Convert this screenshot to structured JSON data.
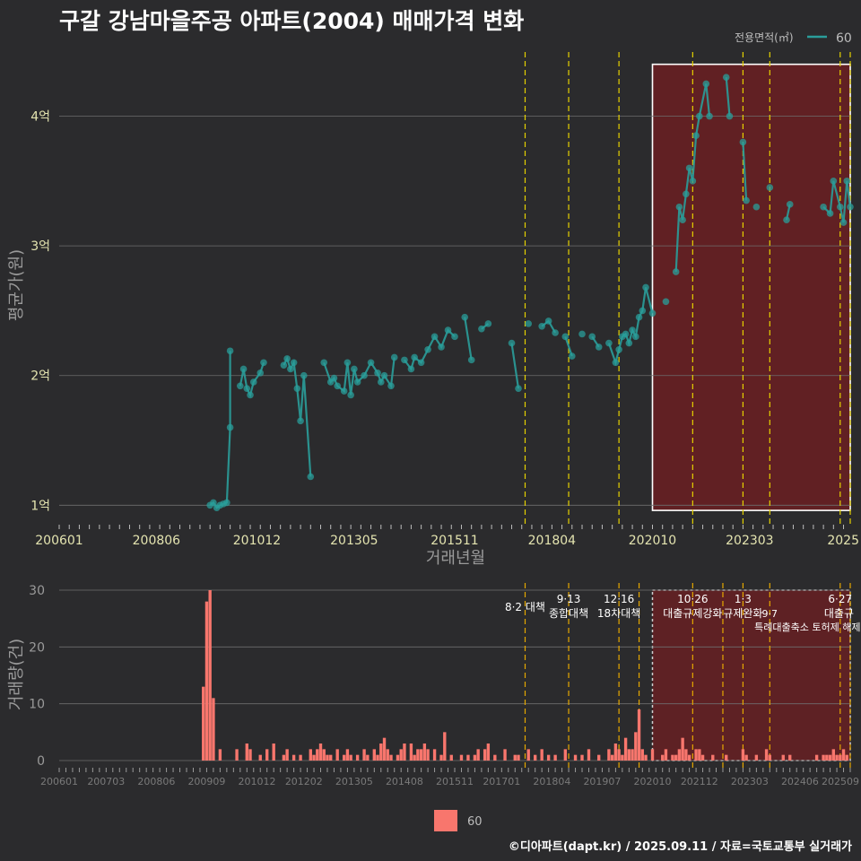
{
  "title": "구갈 강남마을주공 아파트(2004) 매매가격 변화",
  "credit": "©디아파트(dapt.kr) / 2025.09.11 / 자료=국토교통부 실거래가",
  "colors": {
    "background": "#2b2b2d",
    "price_line": "#2a9d9a",
    "volume_bar": "#f8766d",
    "highlight_fill": "#6b1f22",
    "policy_line": "#e6d200",
    "grid": "#6e6e6e"
  },
  "chart_data": [
    {
      "type": "line",
      "title": "구갈 강남마을주공 아파트(2004) 매매가격 변화",
      "xlabel": "거래년월",
      "ylabel": "평균가(원)",
      "x_range": [
        "2006-01",
        "2025-09"
      ],
      "ylim": [
        0.85,
        4.55
      ],
      "y_ticks": [
        1,
        2,
        3,
        4
      ],
      "y_tick_labels": [
        "1억",
        "2억",
        "3억",
        "4억"
      ],
      "x_ticks": [
        "2006-01",
        "2008-06",
        "2010-12",
        "2013-05",
        "2015-11",
        "2018-04",
        "2020-10",
        "2023-03",
        "2025-09"
      ],
      "x_tick_labels": [
        "200601",
        "200806",
        "201012",
        "201305",
        "201511",
        "201804",
        "202010",
        "202303",
        "2025"
      ],
      "legend": {
        "title": "전용면적(㎡)",
        "entries": [
          "60"
        ],
        "position": "top-right"
      },
      "highlight_box": {
        "x_start": "2020-10",
        "x_end": "2025-09",
        "y_start": 0.96,
        "y_end": 4.4
      },
      "policy_lines": [
        "2017-08",
        "2018-09",
        "2019-12",
        "2021-10",
        "2023-01",
        "2023-09",
        "2025-06",
        "2025-09"
      ],
      "series": [
        {
          "name": "60",
          "points": [
            [
              "2009-10",
              1.0
            ],
            [
              "2009-11",
              1.02
            ],
            [
              "2009-12",
              0.98
            ],
            [
              "2010-01",
              1.0
            ],
            [
              "2010-02",
              1.01
            ],
            [
              "2010-03",
              1.02
            ],
            [
              "2010-04",
              1.6
            ],
            [
              "2010-04",
              2.19
            ],
            [
              "2010-07",
              1.92
            ],
            [
              "2010-08",
              2.05
            ],
            [
              "2010-09",
              1.9
            ],
            [
              "2010-10",
              1.85
            ],
            [
              "2010-11",
              1.95
            ],
            [
              "2011-01",
              2.02
            ],
            [
              "2011-02",
              2.1
            ],
            [
              "2011-08",
              2.08
            ],
            [
              "2011-09",
              2.13
            ],
            [
              "2011-10",
              2.05
            ],
            [
              "2011-11",
              2.1
            ],
            [
              "2011-12",
              1.9
            ],
            [
              "2012-01",
              1.65
            ],
            [
              "2012-02",
              2.0
            ],
            [
              "2012-04",
              1.22
            ],
            [
              "2012-08",
              2.1
            ],
            [
              "2012-10",
              1.95
            ],
            [
              "2012-11",
              1.98
            ],
            [
              "2012-12",
              1.92
            ],
            [
              "2013-02",
              1.88
            ],
            [
              "2013-03",
              2.1
            ],
            [
              "2013-04",
              1.85
            ],
            [
              "2013-05",
              2.05
            ],
            [
              "2013-06",
              1.95
            ],
            [
              "2013-08",
              2.0
            ],
            [
              "2013-10",
              2.1
            ],
            [
              "2013-12",
              2.02
            ],
            [
              "2014-01",
              1.95
            ],
            [
              "2014-02",
              2.0
            ],
            [
              "2014-04",
              1.92
            ],
            [
              "2014-05",
              2.14
            ],
            [
              "2014-08",
              2.12
            ],
            [
              "2014-10",
              2.05
            ],
            [
              "2014-11",
              2.14
            ],
            [
              "2015-01",
              2.1
            ],
            [
              "2015-03",
              2.2
            ],
            [
              "2015-05",
              2.3
            ],
            [
              "2015-07",
              2.22
            ],
            [
              "2015-09",
              2.35
            ],
            [
              "2015-11",
              2.3
            ],
            [
              "2016-02",
              2.45
            ],
            [
              "2016-04",
              2.12
            ],
            [
              "2016-07",
              2.36
            ],
            [
              "2016-09",
              2.4
            ],
            [
              "2017-04",
              2.25
            ],
            [
              "2017-06",
              1.9
            ],
            [
              "2017-09",
              2.4
            ],
            [
              "2018-01",
              2.38
            ],
            [
              "2018-03",
              2.42
            ],
            [
              "2018-05",
              2.33
            ],
            [
              "2018-08",
              2.3
            ],
            [
              "2018-10",
              2.15
            ],
            [
              "2019-01",
              2.32
            ],
            [
              "2019-04",
              2.3
            ],
            [
              "2019-06",
              2.22
            ],
            [
              "2019-09",
              2.25
            ],
            [
              "2019-11",
              2.1
            ],
            [
              "2019-12",
              2.2
            ],
            [
              "2020-01",
              2.3
            ],
            [
              "2020-02",
              2.32
            ],
            [
              "2020-03",
              2.25
            ],
            [
              "2020-04",
              2.35
            ],
            [
              "2020-05",
              2.3
            ],
            [
              "2020-06",
              2.45
            ],
            [
              "2020-07",
              2.5
            ],
            [
              "2020-08",
              2.68
            ],
            [
              "2020-10",
              2.48
            ],
            [
              "2021-02",
              2.57
            ],
            [
              "2021-05",
              2.8
            ],
            [
              "2021-06",
              3.3
            ],
            [
              "2021-07",
              3.2
            ],
            [
              "2021-08",
              3.4
            ],
            [
              "2021-09",
              3.6
            ],
            [
              "2021-10",
              3.5
            ],
            [
              "2021-11",
              3.85
            ],
            [
              "2021-12",
              4.0
            ],
            [
              "2022-02",
              4.25
            ],
            [
              "2022-03",
              4.0
            ],
            [
              "2022-08",
              4.3
            ],
            [
              "2022-09",
              4.0
            ],
            [
              "2023-01",
              3.8
            ],
            [
              "2023-02",
              3.35
            ],
            [
              "2023-05",
              3.3
            ],
            [
              "2023-09",
              3.45
            ],
            [
              "2024-02",
              3.2
            ],
            [
              "2024-03",
              3.32
            ],
            [
              "2025-01",
              3.3
            ],
            [
              "2025-03",
              3.25
            ],
            [
              "2025-04",
              3.5
            ],
            [
              "2025-06",
              3.3
            ],
            [
              "2025-07",
              3.18
            ],
            [
              "2025-08",
              3.5
            ],
            [
              "2025-09",
              3.3
            ]
          ]
        }
      ]
    },
    {
      "type": "bar",
      "title": "",
      "xlabel": "",
      "ylabel": "거래량(건)",
      "x_range": [
        "2006-01",
        "2025-09"
      ],
      "ylim": [
        0,
        30
      ],
      "y_ticks": [
        0,
        10,
        20,
        30
      ],
      "y_tick_labels": [
        "0",
        "10",
        "20",
        "30"
      ],
      "x_ticks": [
        "2006-01",
        "2007-03",
        "2008-06",
        "2009-09",
        "2010-12",
        "2012-02",
        "2013-05",
        "2014-08",
        "2015-11",
        "2017-01",
        "2018-04",
        "2019-07",
        "2020-10",
        "2021-12",
        "2023-03",
        "2024-06",
        "2025-09"
      ],
      "x_tick_labels": [
        "200601",
        "200703",
        "200806",
        "200909",
        "201012",
        "201202",
        "201305",
        "201408",
        "201511",
        "201701",
        "201804",
        "201907",
        "202010",
        "202112",
        "202303",
        "202406",
        "202509"
      ],
      "legend": {
        "entries": [
          "60"
        ],
        "position": "bottom-center"
      },
      "highlight_box": {
        "x_start": "2020-10",
        "x_end": "2025-09",
        "y_start": 0,
        "y_end": 30
      },
      "policy_lines": [
        "2017-08",
        "2018-09",
        "2019-12",
        "2020-06",
        "2021-10",
        "2022-07",
        "2023-01",
        "2023-09",
        "2025-06",
        "2025-09"
      ],
      "annotations": [
        {
          "date": "2017-08",
          "line1": "8·2 대책",
          "line2": ""
        },
        {
          "date": "2018-09",
          "line1": "9·13",
          "line2": "종합대책"
        },
        {
          "date": "2019-12",
          "line1": "12·16",
          "line2": "18차대책"
        },
        {
          "date": "2021-10",
          "line1": "10·26",
          "line2": "대출규제강화"
        },
        {
          "date": "2023-01",
          "line1": "1·3",
          "line2": "규제완화"
        },
        {
          "date": "2023-09",
          "line1": "",
          "line2": "9·7"
        },
        {
          "date": "2023-09",
          "line1": "",
          "line2": "특례대출축소 토허제 해제"
        },
        {
          "date": "2025-06",
          "line1": "6·27",
          "line2": "대출규"
        }
      ],
      "series": [
        {
          "name": "60",
          "values": [
            [
              "2009-08",
              13
            ],
            [
              "2009-09",
              28
            ],
            [
              "2009-10",
              30
            ],
            [
              "2009-11",
              11
            ],
            [
              "2010-01",
              2
            ],
            [
              "2010-06",
              2
            ],
            [
              "2010-09",
              3
            ],
            [
              "2010-10",
              2
            ],
            [
              "2011-01",
              1
            ],
            [
              "2011-03",
              2
            ],
            [
              "2011-05",
              3
            ],
            [
              "2011-08",
              1
            ],
            [
              "2011-09",
              2
            ],
            [
              "2011-11",
              1
            ],
            [
              "2012-01",
              1
            ],
            [
              "2012-04",
              2
            ],
            [
              "2012-05",
              1
            ],
            [
              "2012-06",
              2
            ],
            [
              "2012-07",
              3
            ],
            [
              "2012-08",
              2
            ],
            [
              "2012-09",
              1
            ],
            [
              "2012-10",
              1
            ],
            [
              "2012-12",
              2
            ],
            [
              "2013-02",
              1
            ],
            [
              "2013-03",
              2
            ],
            [
              "2013-04",
              1
            ],
            [
              "2013-06",
              1
            ],
            [
              "2013-08",
              2
            ],
            [
              "2013-09",
              1
            ],
            [
              "2013-11",
              2
            ],
            [
              "2013-12",
              1
            ],
            [
              "2014-01",
              3
            ],
            [
              "2014-02",
              4
            ],
            [
              "2014-03",
              2
            ],
            [
              "2014-04",
              1
            ],
            [
              "2014-06",
              1
            ],
            [
              "2014-07",
              2
            ],
            [
              "2014-08",
              3
            ],
            [
              "2014-10",
              3
            ],
            [
              "2014-11",
              1
            ],
            [
              "2014-12",
              2
            ],
            [
              "2015-01",
              2
            ],
            [
              "2015-02",
              3
            ],
            [
              "2015-03",
              2
            ],
            [
              "2015-05",
              2
            ],
            [
              "2015-07",
              1
            ],
            [
              "2015-08",
              5
            ],
            [
              "2015-10",
              1
            ],
            [
              "2016-01",
              1
            ],
            [
              "2016-03",
              1
            ],
            [
              "2016-05",
              1
            ],
            [
              "2016-06",
              2
            ],
            [
              "2016-08",
              2
            ],
            [
              "2016-09",
              3
            ],
            [
              "2016-11",
              1
            ],
            [
              "2017-02",
              2
            ],
            [
              "2017-05",
              1
            ],
            [
              "2017-06",
              1
            ],
            [
              "2017-09",
              2
            ],
            [
              "2017-11",
              1
            ],
            [
              "2018-01",
              2
            ],
            [
              "2018-03",
              1
            ],
            [
              "2018-05",
              1
            ],
            [
              "2018-08",
              2
            ],
            [
              "2018-11",
              1
            ],
            [
              "2019-01",
              1
            ],
            [
              "2019-03",
              2
            ],
            [
              "2019-06",
              1
            ],
            [
              "2019-09",
              2
            ],
            [
              "2019-10",
              1
            ],
            [
              "2019-11",
              3
            ],
            [
              "2019-12",
              2
            ],
            [
              "2020-01",
              1
            ],
            [
              "2020-02",
              4
            ],
            [
              "2020-03",
              2
            ],
            [
              "2020-04",
              2
            ],
            [
              "2020-05",
              5
            ],
            [
              "2020-06",
              9
            ],
            [
              "2020-07",
              2
            ],
            [
              "2020-08",
              1
            ],
            [
              "2020-10",
              2
            ],
            [
              "2021-01",
              1
            ],
            [
              "2021-02",
              2
            ],
            [
              "2021-04",
              1
            ],
            [
              "2021-05",
              1
            ],
            [
              "2021-06",
              2
            ],
            [
              "2021-07",
              4
            ],
            [
              "2021-08",
              2
            ],
            [
              "2021-09",
              1
            ],
            [
              "2021-11",
              2
            ],
            [
              "2021-12",
              2
            ],
            [
              "2022-01",
              1
            ],
            [
              "2022-04",
              1
            ],
            [
              "2022-08",
              1
            ],
            [
              "2023-01",
              2
            ],
            [
              "2023-02",
              1
            ],
            [
              "2023-05",
              1
            ],
            [
              "2023-08",
              2
            ],
            [
              "2023-09",
              1
            ],
            [
              "2024-01",
              1
            ],
            [
              "2024-03",
              1
            ],
            [
              "2024-11",
              1
            ],
            [
              "2025-01",
              1
            ],
            [
              "2025-02",
              1
            ],
            [
              "2025-03",
              1
            ],
            [
              "2025-04",
              2
            ],
            [
              "2025-05",
              1
            ],
            [
              "2025-06",
              1
            ],
            [
              "2025-07",
              2
            ],
            [
              "2025-08",
              1
            ]
          ]
        }
      ]
    }
  ]
}
